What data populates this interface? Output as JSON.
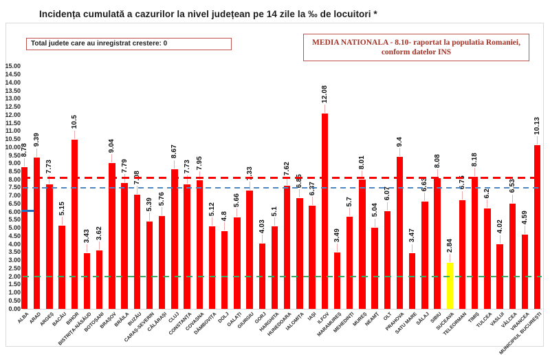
{
  "title": "Incidența cumulată a cazurilor la nivel județean pe 14 zile la ‰ de locuitori *",
  "info_box": {
    "text": "Total judete care au inregistrat crestere: 0"
  },
  "national_box": {
    "line1": "MEDIA NATIONALA - 8.10-  raportat la populatia  Romaniei,",
    "line2": "conform datelor INS"
  },
  "chart_data": {
    "type": "bar",
    "title": "Incidența cumulată a cazurilor la nivel județean pe 14 zile la ‰ de locuitori *",
    "xlabel": "",
    "ylabel": "",
    "ylim": [
      0,
      15
    ],
    "ytick_step": 0.5,
    "ytick_decimals": 2,
    "grid": false,
    "legend": false,
    "bar_color": "#fe0000",
    "categories": [
      "ALBA",
      "ARAD",
      "ARGEȘ",
      "BACĂU",
      "BIHOR",
      "BISTRIȚA-NĂSĂUD",
      "BOTOȘANI",
      "BRAȘOV",
      "BRĂILA",
      "BUZĂU",
      "CARAȘ-SEVERIN",
      "CĂLĂRAȘI",
      "CLUJ",
      "CONSTANȚA",
      "COVASNA",
      "DÂMBOVIȚA",
      "DOLJ",
      "GALAȚI",
      "GIURGIU",
      "GORJ",
      "HARGHITA",
      "HUNEDOARA",
      "IALOMIȚA",
      "IAȘI",
      "ILFOV",
      "MARAMUREȘ",
      "MEHEDINȚI",
      "MUREȘ",
      "NEAMȚ",
      "OLT",
      "PRAHOVA",
      "SATU MARE",
      "SĂLAJ",
      "SIBIU",
      "SUCEAVA",
      "TELEORMAN",
      "TIMIȘ",
      "TULCEA",
      "VASLUI",
      "VÂLCEA",
      "VRANCEA",
      "MUNICIPIUL BUCUREȘTI"
    ],
    "values": [
      8.78,
      9.39,
      7.73,
      5.15,
      10.5,
      3.43,
      3.62,
      9.04,
      7.79,
      7.08,
      5.39,
      5.76,
      8.67,
      7.73,
      7.95,
      5.12,
      4.8,
      5.66,
      7.33,
      4.03,
      5.1,
      7.62,
      6.85,
      6.37,
      12.08,
      3.49,
      5.7,
      8.01,
      5.04,
      6.07,
      9.4,
      3.47,
      6.63,
      8.08,
      2.84,
      6.75,
      8.18,
      6.2,
      4.02,
      6.53,
      4.59,
      10.13
    ],
    "highlight": {
      "index": 34,
      "category": "SUCEAVA",
      "color": "#ffff00"
    },
    "national_average": 8.1,
    "reference_lines": [
      {
        "name": "national-average-line",
        "value": 8.1,
        "color": "#ff0000",
        "style": "dashed",
        "thickness": 3,
        "dash": 11,
        "gap": 7,
        "extent": "full"
      },
      {
        "name": "blue-reference-line",
        "value": 7.5,
        "color": "#4e87c3",
        "style": "dashed",
        "thickness": 2,
        "dash": 8,
        "gap": 6,
        "extent": "full"
      },
      {
        "name": "green-reference-line",
        "value": 2.0,
        "color": "#3baa62",
        "style": "dashed",
        "thickness": 2.5,
        "dash": 9,
        "gap": 8,
        "extent": "full"
      },
      {
        "name": "blue-marker",
        "value": 6.08,
        "color": "#1f6fc0",
        "style": "solid",
        "thickness": 3,
        "extent": "short"
      }
    ]
  }
}
